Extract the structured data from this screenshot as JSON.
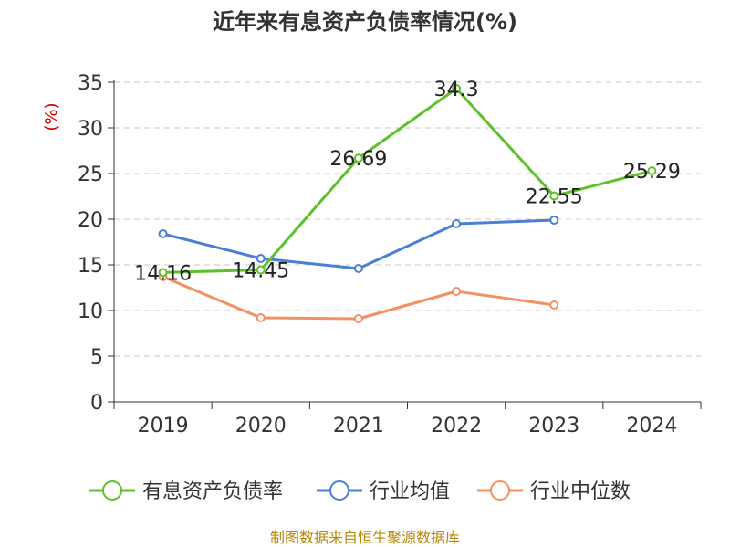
{
  "chart_data": {
    "type": "line",
    "title": "近年来有息资产负债率情况(%)",
    "ylabel": "(%)",
    "categories": [
      "2019",
      "2020",
      "2021",
      "2022",
      "2023",
      "2024"
    ],
    "yticks": [
      "0",
      "5",
      "10",
      "15",
      "20",
      "25",
      "30",
      "35"
    ],
    "ylim": [
      0,
      35
    ],
    "grid": true,
    "legend": "bottom",
    "series": [
      {
        "name": "有息资产负债率",
        "color": "#5ec02a",
        "values": [
          14.16,
          14.45,
          26.69,
          34.3,
          22.55,
          25.29
        ],
        "labels": [
          "14.16",
          "14.45",
          "26.69",
          "34.3",
          "22.55",
          "25.29"
        ]
      },
      {
        "name": "行业均值",
        "color": "#4a7fd6",
        "values": [
          18.4,
          15.7,
          14.6,
          19.5,
          19.9,
          null
        ]
      },
      {
        "name": "行业中位数",
        "color": "#f59062",
        "values": [
          13.7,
          9.2,
          9.1,
          12.1,
          10.6,
          null
        ]
      }
    ]
  },
  "source": "制图数据来自恒生聚源数据库"
}
